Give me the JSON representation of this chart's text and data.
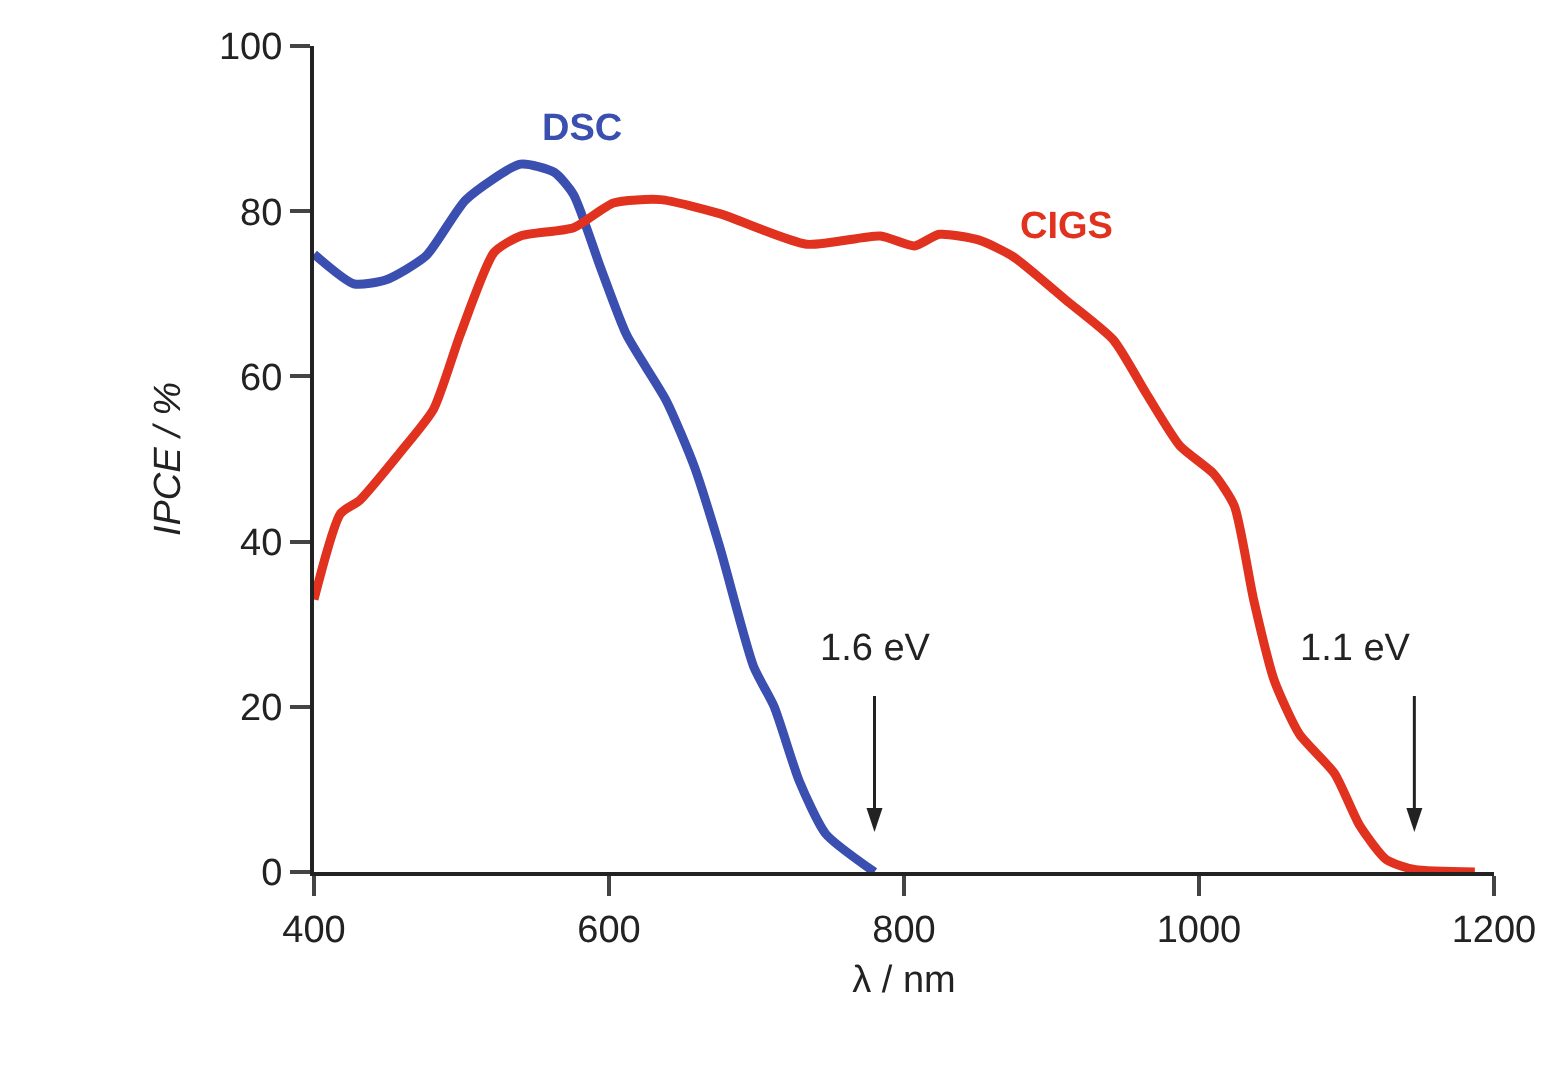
{
  "chart_data": {
    "type": "line",
    "xlabel": "λ / nm",
    "ylabel": "IPCE / %",
    "xlim": [
      400,
      1200
    ],
    "xticks": [
      400,
      600,
      800,
      1000,
      1200
    ],
    "ylim": [
      0,
      100
    ],
    "yticks": [
      0,
      20,
      40,
      60,
      80,
      100
    ],
    "grid": false,
    "legend": false,
    "marker": "none",
    "line_style": "solid",
    "series": [
      {
        "name": "DSC",
        "color": "#3a4fb0",
        "x": [
          400,
          427,
          449,
          476,
          503,
          540,
          563,
          576,
          594,
          612,
          639,
          658,
          675,
          698,
          712,
          729,
          747,
          780
        ],
        "values": [
          74.8,
          71.2,
          71.7,
          74.6,
          81.4,
          85.7,
          84.7,
          82,
          73.3,
          65,
          57,
          49,
          39.4,
          24.9,
          20,
          11,
          4.6,
          0
        ]
      },
      {
        "name": "CIGS",
        "color": "#e0321f",
        "x": [
          400,
          418,
          431,
          458,
          481,
          499,
          522,
          540,
          576,
          603,
          635,
          675,
          734,
          784,
          807,
          824,
          851,
          874,
          910,
          942,
          964,
          987,
          1010,
          1024,
          1037,
          1051,
          1068,
          1092,
          1109,
          1127,
          1146,
          1187
        ],
        "values": [
          33,
          43.4,
          45,
          50.7,
          56,
          65,
          75,
          77,
          78,
          81,
          81.4,
          79.7,
          76,
          77,
          75.8,
          77.2,
          76.5,
          74.5,
          69.2,
          64.4,
          58,
          51.6,
          48.2,
          44.3,
          33,
          23.2,
          16.7,
          11.9,
          5.6,
          1.5,
          0.3,
          0
        ]
      }
    ],
    "annotations": [
      "1.6 eV",
      "1.1 eV"
    ]
  }
}
